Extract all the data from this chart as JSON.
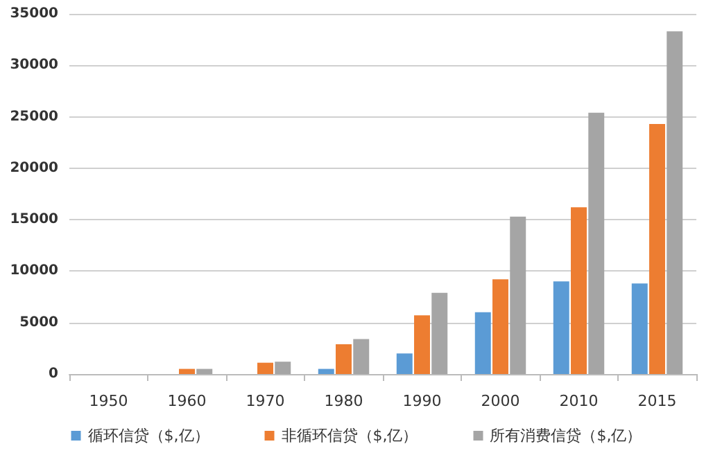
{
  "chart_data": {
    "type": "bar",
    "categories": [
      "1950",
      "1960",
      "1970",
      "1980",
      "1990",
      "2000",
      "2010",
      "2015"
    ],
    "series": [
      {
        "name": "循环信贷（$,亿）",
        "color": "#5b9bd5",
        "values": [
          0,
          0,
          0,
          500,
          2000,
          6000,
          9000,
          8800
        ]
      },
      {
        "name": "非循环信贷（$,亿）",
        "color": "#ed7d31",
        "values": [
          0,
          500,
          1100,
          2900,
          5700,
          9200,
          16200,
          24300
        ]
      },
      {
        "name": "所有消费信贷（$,亿）",
        "color": "#a5a5a5",
        "values": [
          0,
          500,
          1200,
          3400,
          7900,
          15300,
          25400,
          33300
        ]
      }
    ],
    "ylim": [
      0,
      35000
    ],
    "yticks": [
      0,
      5000,
      10000,
      15000,
      20000,
      25000,
      30000,
      35000
    ],
    "grid": "y",
    "legend": "bottom"
  }
}
